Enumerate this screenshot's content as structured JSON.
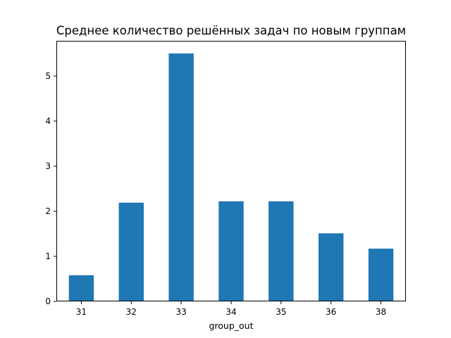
{
  "chart_data": {
    "type": "bar",
    "title": "Среднее количество решённых задач по новым группам",
    "xlabel": "group_out",
    "ylabel": "",
    "categories": [
      "31",
      "32",
      "33",
      "34",
      "35",
      "36",
      "38"
    ],
    "values": [
      0.58,
      2.19,
      5.5,
      2.22,
      2.22,
      1.51,
      1.17
    ],
    "ylim": [
      0,
      5.78
    ],
    "yticks": [
      0,
      1,
      2,
      3,
      4,
      5
    ],
    "bar_color": "#1f77b4",
    "grid": false,
    "legend": "none"
  }
}
